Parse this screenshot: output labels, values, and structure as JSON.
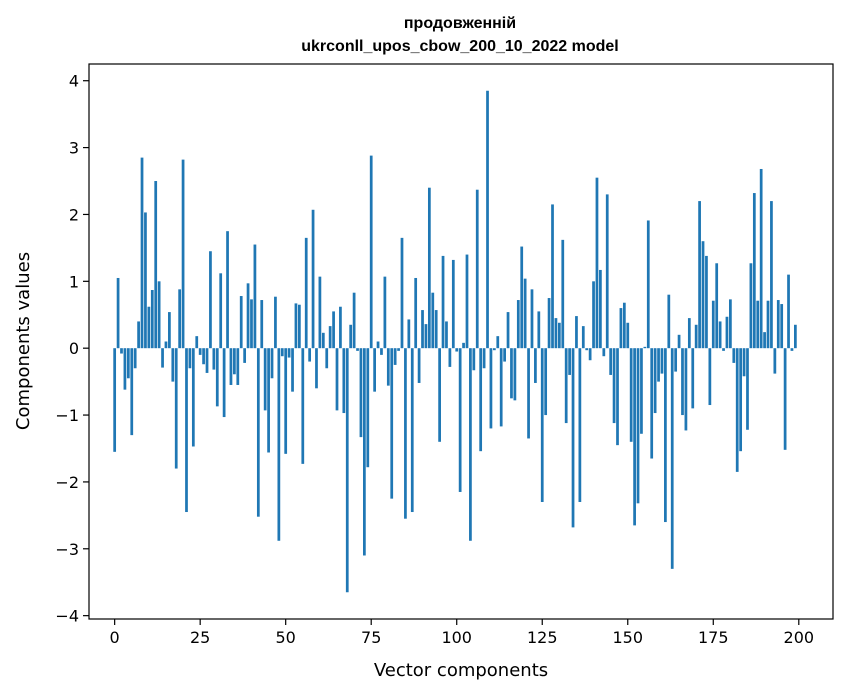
{
  "chart_data": {
    "type": "bar",
    "title": "продовженній",
    "subtitle": "ukrconll_upos_cbow_200_10_2022 model",
    "xlabel": "Vector components",
    "ylabel": "Components values",
    "xlim": [
      -7.5,
      210
    ],
    "ylim": [
      -4.05,
      4.25
    ],
    "xticks": [
      0,
      25,
      50,
      75,
      100,
      125,
      150,
      175,
      200
    ],
    "yticks": [
      -4,
      -3,
      -2,
      -1,
      0,
      1,
      2,
      3,
      4
    ],
    "grid": false,
    "legend": "none",
    "bar_color": "#1f77b4",
    "values": [
      -1.55,
      1.05,
      -0.08,
      -0.62,
      -0.45,
      -1.3,
      -0.3,
      0.4,
      2.85,
      2.03,
      0.62,
      0.87,
      2.5,
      1.0,
      -0.29,
      0.1,
      0.54,
      -0.5,
      -1.8,
      0.88,
      2.82,
      -2.45,
      -0.3,
      -1.47,
      0.18,
      -0.1,
      -0.24,
      -0.37,
      1.45,
      -0.32,
      -0.87,
      1.12,
      -1.03,
      1.75,
      -0.55,
      -0.39,
      -0.55,
      0.78,
      -0.22,
      0.97,
      0.73,
      1.55,
      -2.52,
      0.72,
      -0.93,
      -1.56,
      -0.45,
      0.77,
      -2.88,
      -0.12,
      -1.58,
      -0.14,
      -0.65,
      0.67,
      0.65,
      -1.73,
      1.65,
      -0.2,
      2.07,
      -0.6,
      1.07,
      0.23,
      -0.3,
      0.33,
      0.55,
      -0.93,
      0.62,
      -0.97,
      -3.65,
      0.35,
      0.83,
      -0.04,
      -1.33,
      -3.1,
      -1.78,
      2.88,
      -0.65,
      0.1,
      -0.1,
      1.07,
      -0.56,
      -2.25,
      -0.25,
      -0.04,
      1.65,
      -2.55,
      0.43,
      -2.45,
      1.05,
      -0.52,
      0.57,
      0.36,
      2.4,
      0.83,
      0.57,
      -1.4,
      1.38,
      0.4,
      -0.28,
      1.32,
      -0.05,
      -2.15,
      0.08,
      1.4,
      -2.88,
      -0.33,
      2.37,
      -1.54,
      -0.3,
      3.85,
      -1.2,
      -0.03,
      0.18,
      -1.17,
      -0.2,
      0.54,
      -0.75,
      -0.78,
      0.72,
      1.52,
      1.04,
      -1.35,
      0.88,
      -0.52,
      0.55,
      -2.3,
      -1.0,
      0.75,
      2.15,
      0.45,
      0.38,
      1.62,
      -1.12,
      -0.4,
      -2.68,
      0.48,
      -2.3,
      0.33,
      -0.03,
      -0.18,
      1.0,
      2.55,
      1.17,
      -0.12,
      2.3,
      -0.4,
      -1.12,
      -1.45,
      0.6,
      0.68,
      0.38,
      -1.4,
      -2.65,
      -2.32,
      -1.28,
      0.02,
      1.91,
      -1.65,
      -0.97,
      -0.5,
      -0.38,
      -2.6,
      0.8,
      -3.3,
      -0.35,
      0.2,
      -1.0,
      -1.23,
      0.45,
      -0.9,
      0.35,
      2.2,
      1.6,
      1.38,
      -0.85,
      0.71,
      1.27,
      0.4,
      -0.04,
      0.47,
      0.73,
      -0.22,
      -1.85,
      -1.54,
      -0.42,
      -1.22,
      1.27,
      2.32,
      0.71,
      2.68,
      0.24,
      0.71,
      2.2,
      -0.38,
      0.72,
      0.66,
      -1.52,
      1.1,
      -0.04,
      0.35
    ]
  }
}
